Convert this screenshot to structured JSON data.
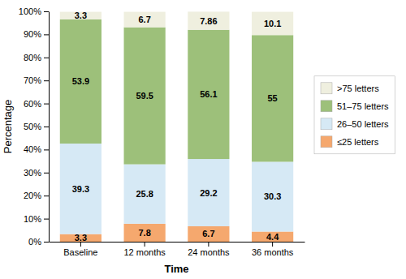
{
  "chart_data": {
    "type": "bar",
    "stacked": true,
    "data_labels": true,
    "legend": "right",
    "grid": false,
    "xlabel": "Time",
    "ylabel": "Percentage",
    "categories": [
      "Baseline",
      "12 months",
      "24 months",
      "36 months"
    ],
    "series": [
      {
        "name": "≤25 letters",
        "color": "#f5a86e",
        "values": [
          3.3,
          7.8,
          6.7,
          4.4
        ]
      },
      {
        "name": "26–50 letters",
        "color": "#d6e9f5",
        "values": [
          39.3,
          25.8,
          29.2,
          30.3
        ]
      },
      {
        "name": "51–75 letters",
        "color": "#9dc07a",
        "values": [
          53.9,
          59.5,
          56.1,
          55
        ]
      },
      {
        "name": ">75 letters",
        "color": "#efefdf",
        "values": [
          3.3,
          6.7,
          7.86,
          10.1
        ]
      }
    ],
    "ylim": [
      0,
      100
    ],
    "yticks": [
      {
        "value": 0,
        "label": "0%"
      },
      {
        "value": 10,
        "label": "10%"
      },
      {
        "value": 20,
        "label": "20%"
      },
      {
        "value": 30,
        "label": "30%"
      },
      {
        "value": 40,
        "label": "40%"
      },
      {
        "value": 50,
        "label": "50%"
      },
      {
        "value": 60,
        "label": "60%"
      },
      {
        "value": 70,
        "label": "70%"
      },
      {
        "value": 80,
        "label": "80%"
      },
      {
        "value": 90,
        "label": "90%"
      },
      {
        "value": 100,
        "label": "100%"
      }
    ]
  }
}
